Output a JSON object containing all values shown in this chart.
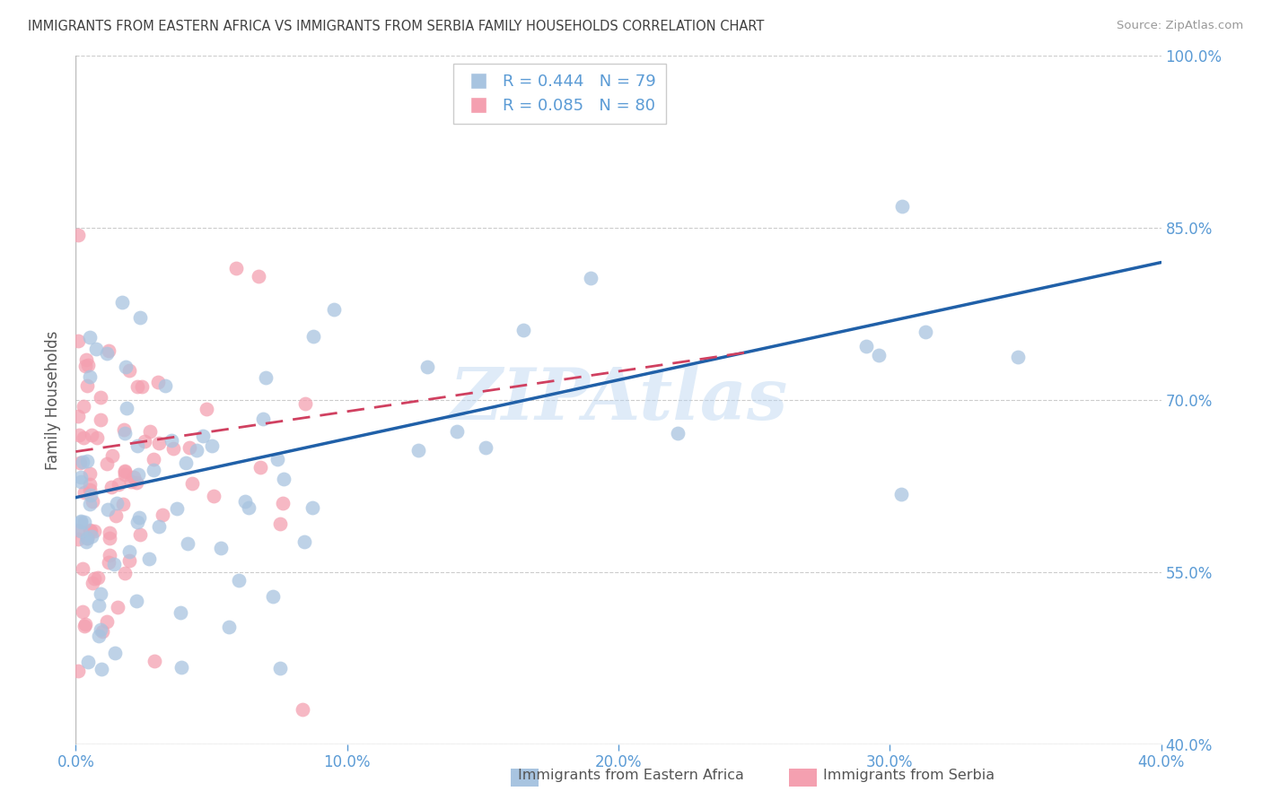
{
  "title": "IMMIGRANTS FROM EASTERN AFRICA VS IMMIGRANTS FROM SERBIA FAMILY HOUSEHOLDS CORRELATION CHART",
  "source": "Source: ZipAtlas.com",
  "ylabel": "Family Households",
  "xlim": [
    0.0,
    0.4
  ],
  "ylim": [
    0.4,
    1.0
  ],
  "yticks": [
    0.4,
    0.55,
    0.7,
    0.85,
    1.0
  ],
  "xticks": [
    0.0,
    0.1,
    0.2,
    0.3,
    0.4
  ],
  "watermark": "ZIPAtlas",
  "axis_color": "#5b9bd5",
  "title_color": "#404040",
  "blue_scatter_color": "#a8c4e0",
  "pink_scatter_color": "#f4a0b0",
  "blue_line_color": "#2060a8",
  "pink_line_color": "#d04060",
  "blue_r": 0.444,
  "blue_n": 79,
  "pink_r": 0.085,
  "pink_n": 80,
  "blue_line_x0": 0.0,
  "blue_line_y0": 0.615,
  "blue_line_x1": 0.4,
  "blue_line_y1": 0.82,
  "pink_line_x0": 0.0,
  "pink_line_y0": 0.655,
  "pink_line_x1": 0.1,
  "pink_line_y1": 0.69,
  "legend_label_blue": "Immigrants from Eastern Africa",
  "legend_label_pink": "Immigrants from Serbia",
  "grid_color": "#cccccc",
  "spine_color": "#bbbbbb"
}
